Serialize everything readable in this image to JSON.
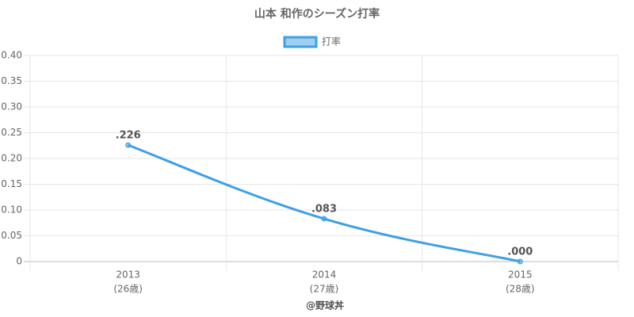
{
  "chart_data": {
    "type": "line",
    "title": "山本 和作のシーズン打率",
    "categories": [
      "2013",
      "2014",
      "2015"
    ],
    "category_sublabels": [
      "(26歳)",
      "(27歳)",
      "(28歳)"
    ],
    "series": [
      {
        "name": "打率",
        "color": "#3ea0e4",
        "values": [
          0.226,
          0.083,
          0
        ],
        "value_labels": [
          ".226",
          ".083",
          ".000"
        ]
      }
    ],
    "ylim": [
      0,
      0.4
    ],
    "yticks": [
      0,
      0.05,
      {
        "value": 0.1,
        "label": "0.10"
      },
      0.15,
      {
        "value": 0.2,
        "label": "0.20"
      },
      0.25,
      {
        "value": 0.3,
        "label": "0.30"
      },
      0.35,
      {
        "value": 0.4,
        "label": "0.40"
      }
    ],
    "grid": true,
    "legend": "top",
    "credit": "@野球丼"
  }
}
